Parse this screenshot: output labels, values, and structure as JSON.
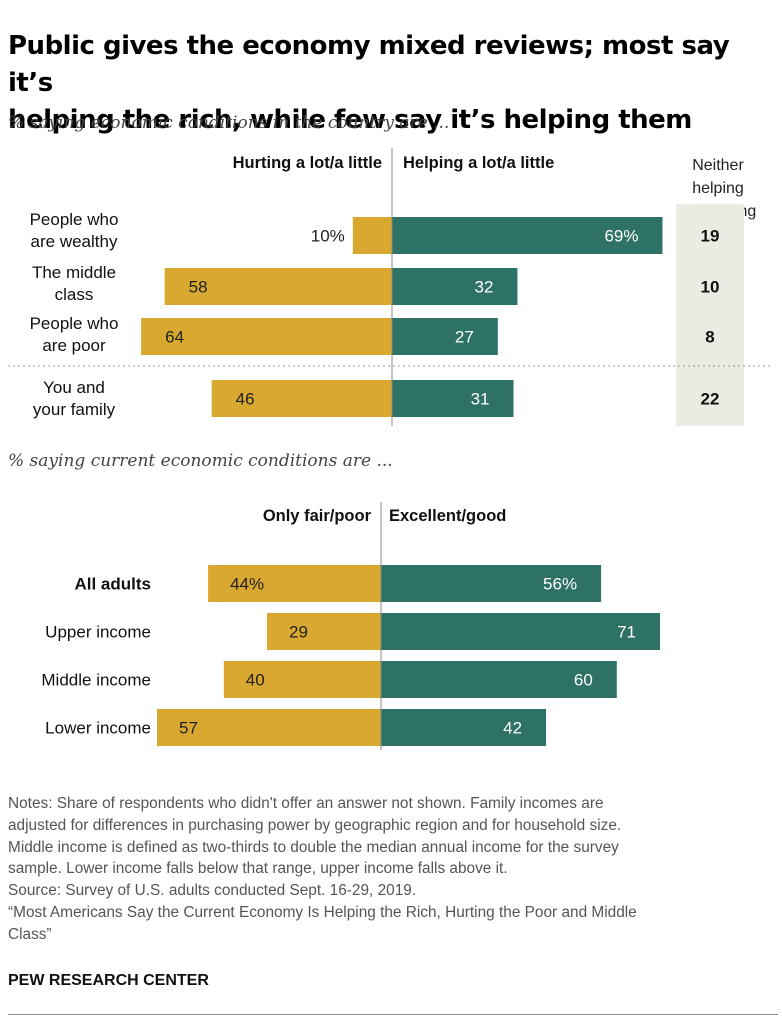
{
  "title_line1": "Public gives the economy mixed reviews; most say it’s",
  "title_line2": "helping the rich, while few say it’s helping them",
  "colors": {
    "negative": "#d8a830",
    "positive": "#2e7265",
    "neither_bg": "#ecebe3"
  },
  "chart_data": [
    {
      "type": "bar",
      "orientation": "horizontal-diverging",
      "subtitle": "% saying economic conditions in the country are ...",
      "left_header": "Hurting a lot/a little",
      "right_header": "Helping a lot/a little",
      "extra_header_line1": "Neither helping",
      "extra_header_line2": "nor hurting",
      "rows": [
        {
          "label_line1": "People who",
          "label_line2": "are wealthy",
          "hurting": 10,
          "helping": 69,
          "neither": 19,
          "hurting_label": "10%",
          "helping_label": "69%",
          "neither_label": "19"
        },
        {
          "label_line1": "The middle",
          "label_line2": "class",
          "hurting": 58,
          "helping": 32,
          "neither": 10,
          "hurting_label": "58",
          "helping_label": "32",
          "neither_label": "10"
        },
        {
          "label_line1": "People who",
          "label_line2": "are poor",
          "hurting": 64,
          "helping": 27,
          "neither": 8,
          "hurting_label": "64",
          "helping_label": "27",
          "neither_label": "8"
        },
        {
          "label_line1": "You and",
          "label_line2": "your family",
          "hurting": 46,
          "helping": 31,
          "neither": 22,
          "hurting_label": "46",
          "helping_label": "31",
          "neither_label": "22"
        }
      ]
    },
    {
      "type": "bar",
      "orientation": "horizontal-diverging",
      "subtitle": "% saying current economic conditions are ...",
      "left_header": "Only fair/poor",
      "right_header": "Excellent/good",
      "rows": [
        {
          "label": "All adults",
          "bold": true,
          "fair_poor": 44,
          "excellent_good": 56,
          "fair_poor_label": "44%",
          "excellent_good_label": "56%"
        },
        {
          "label": "Upper income",
          "bold": false,
          "fair_poor": 29,
          "excellent_good": 71,
          "fair_poor_label": "29",
          "excellent_good_label": "71"
        },
        {
          "label": "Middle income",
          "bold": false,
          "fair_poor": 40,
          "excellent_good": 60,
          "fair_poor_label": "40",
          "excellent_good_label": "60"
        },
        {
          "label": "Lower income",
          "bold": false,
          "fair_poor": 57,
          "excellent_good": 42,
          "fair_poor_label": "57",
          "excellent_good_label": "42"
        }
      ]
    }
  ],
  "notes": [
    "Notes: Share of respondents who didn't offer an answer not shown.  Family incomes are",
    "adjusted for differences in purchasing power by geographic region and for household size.",
    "Middle income is defined as two-thirds to double the median annual income for the survey",
    "sample. Lower income falls below that range, upper income falls above it.",
    "Source: Survey of U.S. adults conducted Sept. 16-29, 2019.",
    "“Most Americans Say the Current Economy Is Helping the Rich, Hurting the Poor and Middle",
    "Class”"
  ],
  "brand": "PEW RESEARCH CENTER"
}
